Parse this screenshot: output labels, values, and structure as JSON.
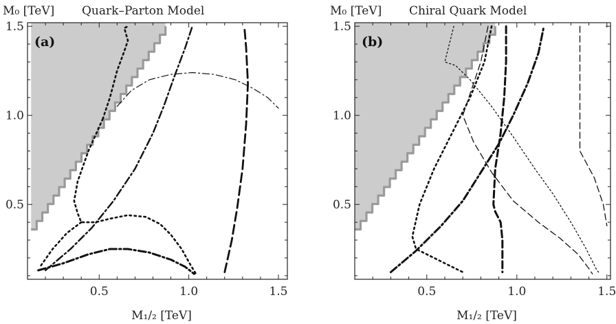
{
  "chart_data": [
    {
      "type": "line",
      "ylabel": "M₀ [TeV]",
      "title": "Quark–Parton Model",
      "panel_tag": "(a)",
      "xlabel": "M₁/₂ [TeV]",
      "xlim": [
        0.1,
        1.55
      ],
      "ylim": [
        0.08,
        1.52
      ],
      "xticks": [
        "0.5",
        "1.0",
        "1.5"
      ],
      "yticks": [
        "0.5",
        "1.0",
        "1.5"
      ],
      "excluded_region": [
        [
          0.12,
          0.36
        ],
        [
          0.87,
          1.5
        ],
        [
          0.12,
          1.5
        ]
      ],
      "boundary_color": "#9a9a9a",
      "fill_color": "#cccccc",
      "series": [
        {
          "style": "dotted",
          "width": 2.6,
          "points": [
            [
              0.52,
              0.98
            ],
            [
              0.56,
              1.1
            ],
            [
              0.6,
              1.25
            ],
            [
              0.64,
              1.36
            ],
            [
              0.66,
              1.42
            ],
            [
              0.64,
              1.49
            ],
            [
              0.66,
              1.5
            ]
          ]
        },
        {
          "style": "dotted",
          "width": 2.6,
          "points": [
            [
              0.52,
              0.98
            ],
            [
              0.44,
              0.8
            ],
            [
              0.38,
              0.63
            ],
            [
              0.36,
              0.52
            ],
            [
              0.38,
              0.45
            ],
            [
              0.4,
              0.4
            ],
            [
              0.48,
              0.4
            ],
            [
              0.56,
              0.42
            ],
            [
              0.66,
              0.44
            ],
            [
              0.76,
              0.43
            ],
            [
              0.84,
              0.39
            ],
            [
              0.9,
              0.33
            ],
            [
              0.96,
              0.25
            ],
            [
              1.01,
              0.16
            ],
            [
              1.04,
              0.11
            ]
          ]
        },
        {
          "style": "dotted",
          "width": 2.6,
          "points": [
            [
              0.4,
              0.4
            ],
            [
              0.32,
              0.34
            ],
            [
              0.24,
              0.25
            ],
            [
              0.17,
              0.15
            ]
          ]
        },
        {
          "style": "dashdot",
          "width": 3.0,
          "points": [
            [
              0.16,
              0.13
            ],
            [
              0.3,
              0.17
            ],
            [
              0.44,
              0.22
            ],
            [
              0.56,
              0.25
            ],
            [
              0.66,
              0.25
            ],
            [
              0.78,
              0.23
            ],
            [
              0.9,
              0.19
            ],
            [
              0.98,
              0.15
            ],
            [
              1.03,
              0.11
            ]
          ]
        },
        {
          "style": "dashdot",
          "width": 2.4,
          "points": [
            [
              0.2,
              0.13
            ],
            [
              0.34,
              0.25
            ],
            [
              0.46,
              0.37
            ],
            [
              0.58,
              0.52
            ],
            [
              0.7,
              0.7
            ],
            [
              0.8,
              0.9
            ],
            [
              0.86,
              1.05
            ],
            [
              0.92,
              1.22
            ],
            [
              0.98,
              1.38
            ],
            [
              1.02,
              1.5
            ]
          ]
        },
        {
          "style": "longdash",
          "width": 2.8,
          "points": [
            [
              1.2,
              0.12
            ],
            [
              1.24,
              0.3
            ],
            [
              1.27,
              0.48
            ],
            [
              1.3,
              0.7
            ],
            [
              1.32,
              0.95
            ],
            [
              1.33,
              1.18
            ],
            [
              1.32,
              1.38
            ],
            [
              1.31,
              1.5
            ]
          ]
        },
        {
          "style": "thin-dashdot",
          "width": 1.2,
          "points": [
            [
              0.6,
              1.05
            ],
            [
              0.68,
              1.14
            ],
            [
              0.78,
              1.2
            ],
            [
              0.9,
              1.23
            ],
            [
              1.02,
              1.24
            ],
            [
              1.14,
              1.23
            ],
            [
              1.26,
              1.2
            ],
            [
              1.36,
              1.15
            ],
            [
              1.44,
              1.1
            ],
            [
              1.5,
              1.04
            ]
          ]
        }
      ]
    },
    {
      "type": "line",
      "ylabel": "M₀ [TeV]",
      "title": "Chiral Quark Model",
      "panel_tag": "(b)",
      "xlabel": "M₁/₂ [TeV]",
      "xlim": [
        0.1,
        1.52
      ],
      "ylim": [
        0.08,
        1.52
      ],
      "xticks": [
        "0.5",
        "1.0",
        "1.5"
      ],
      "yticks": [
        "0.5",
        "1.0",
        "1.5"
      ],
      "excluded_region": [
        [
          0.1,
          0.36
        ],
        [
          0.88,
          1.5
        ],
        [
          0.1,
          1.5
        ]
      ],
      "boundary_color": "#9a9a9a",
      "fill_color": "#cccccc",
      "series": [
        {
          "style": "thin-dotted",
          "width": 1.3,
          "points": [
            [
              0.65,
              1.5
            ],
            [
              0.62,
              1.38
            ],
            [
              0.6,
              1.3
            ],
            [
              0.66,
              1.28
            ],
            [
              0.74,
              1.2
            ],
            [
              0.86,
              1.05
            ],
            [
              0.98,
              0.88
            ],
            [
              1.1,
              0.7
            ],
            [
              1.2,
              0.56
            ],
            [
              1.3,
              0.4
            ],
            [
              1.38,
              0.26
            ],
            [
              1.44,
              0.14
            ],
            [
              1.46,
              0.11
            ]
          ]
        },
        {
          "style": "thin-dash",
          "width": 1.3,
          "points": [
            [
              0.84,
              1.5
            ],
            [
              0.8,
              1.3
            ],
            [
              0.74,
              1.12
            ],
            [
              0.7,
              1.0
            ],
            [
              0.76,
              0.85
            ],
            [
              0.86,
              0.68
            ],
            [
              0.98,
              0.52
            ],
            [
              1.12,
              0.4
            ],
            [
              1.24,
              0.31
            ],
            [
              1.34,
              0.22
            ],
            [
              1.4,
              0.14
            ],
            [
              1.42,
              0.11
            ]
          ]
        },
        {
          "style": "thin-dash",
          "width": 1.3,
          "points": [
            [
              1.35,
              1.5
            ],
            [
              1.35,
              1.2
            ],
            [
              1.35,
              0.8
            ],
            [
              1.43,
              0.65
            ],
            [
              1.48,
              0.5
            ],
            [
              1.5,
              0.38
            ]
          ]
        },
        {
          "style": "dotted",
          "width": 2.6,
          "points": [
            [
              0.86,
              1.5
            ],
            [
              0.82,
              1.3
            ],
            [
              0.74,
              1.1
            ],
            [
              0.64,
              0.9
            ],
            [
              0.54,
              0.7
            ],
            [
              0.46,
              0.5
            ],
            [
              0.42,
              0.32
            ],
            [
              0.44,
              0.25
            ],
            [
              0.54,
              0.2
            ],
            [
              0.62,
              0.16
            ],
            [
              0.7,
              0.12
            ]
          ]
        },
        {
          "style": "dashed",
          "width": 3.0,
          "points": [
            [
              0.94,
              1.5
            ],
            [
              0.94,
              1.3
            ],
            [
              0.93,
              1.1
            ],
            [
              0.91,
              0.9
            ],
            [
              0.88,
              0.7
            ],
            [
              0.87,
              0.5
            ],
            [
              0.88,
              0.46
            ],
            [
              0.91,
              0.4
            ],
            [
              0.92,
              0.3
            ],
            [
              0.92,
              0.2
            ],
            [
              0.92,
              0.12
            ]
          ]
        },
        {
          "style": "dashdot",
          "width": 3.0,
          "points": [
            [
              0.3,
              0.12
            ],
            [
              0.44,
              0.24
            ],
            [
              0.58,
              0.38
            ],
            [
              0.7,
              0.52
            ],
            [
              0.8,
              0.68
            ],
            [
              0.9,
              0.84
            ],
            [
              0.98,
              1.0
            ],
            [
              1.06,
              1.18
            ],
            [
              1.12,
              1.35
            ],
            [
              1.15,
              1.5
            ]
          ]
        }
      ]
    }
  ]
}
